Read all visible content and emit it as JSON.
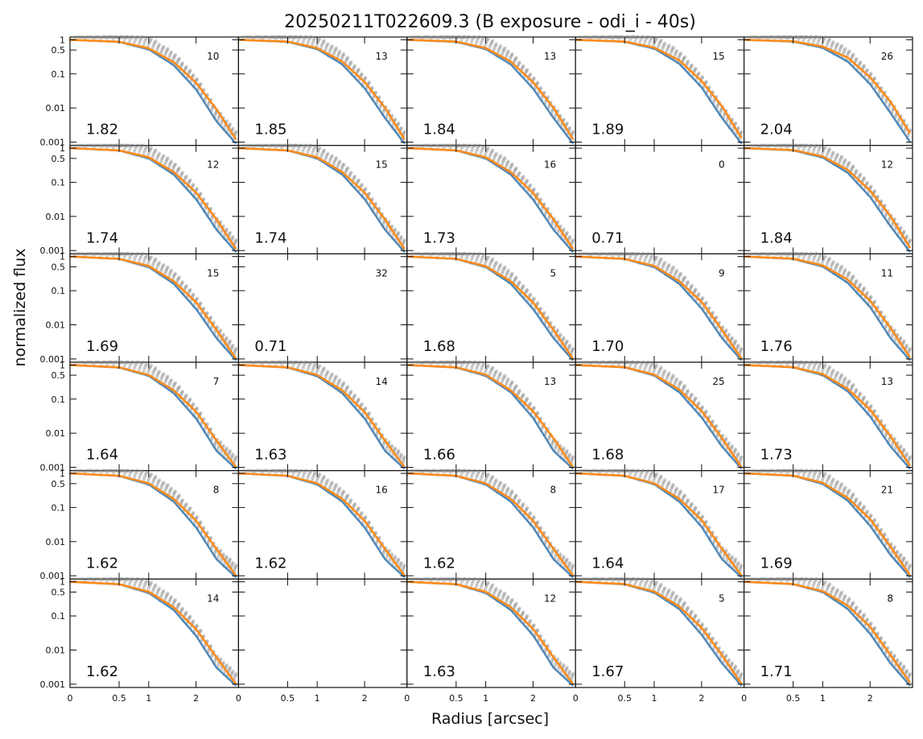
{
  "chart_data": {
    "type": "scatter",
    "title": "20250211T022609.3 (B exposure - odi_i - 40s)",
    "xlabel": "Radius [arcsec]",
    "ylabel": "normalized flux",
    "xscale": "radius-transform",
    "yscale": "log",
    "ylim": [
      0.0008,
      1.2
    ],
    "x_ticks": [
      0,
      0.5,
      1,
      2
    ],
    "x_tick_labels": [
      "0",
      "0.5",
      "1",
      "2"
    ],
    "y_ticks": [
      1,
      0.5,
      0.1,
      0.01,
      0.001
    ],
    "y_tick_labels": [
      "1",
      "0.5",
      "0.1",
      "0.01",
      "0.001"
    ],
    "grid": false,
    "layout": {
      "rows": 6,
      "cols": 5
    },
    "panels": [
      {
        "fwhm": "1.82",
        "count": "10",
        "profile_x": [
          0,
          0.5,
          1,
          1.5,
          2,
          2.5,
          3
        ],
        "measured_flux": [
          1,
          0.86,
          0.52,
          0.18,
          0.035,
          0.004,
          0.0009
        ],
        "fit_flux": [
          1,
          0.87,
          0.56,
          0.22,
          0.055,
          0.009,
          0.0012
        ]
      },
      {
        "fwhm": "1.85",
        "count": "13",
        "profile_x": [
          0,
          0.5,
          1,
          1.5,
          2,
          2.5,
          3
        ],
        "measured_flux": [
          1,
          0.86,
          0.53,
          0.19,
          0.038,
          0.005,
          0.0009
        ],
        "fit_flux": [
          1,
          0.88,
          0.57,
          0.23,
          0.058,
          0.01,
          0.0012
        ]
      },
      {
        "fwhm": "1.84",
        "count": "13",
        "profile_x": [
          0,
          0.5,
          1,
          1.5,
          2,
          2.5,
          3
        ],
        "measured_flux": [
          1,
          0.86,
          0.53,
          0.19,
          0.037,
          0.005,
          0.0009
        ],
        "fit_flux": [
          1,
          0.88,
          0.57,
          0.23,
          0.057,
          0.01,
          0.0012
        ]
      },
      {
        "fwhm": "1.89",
        "count": "15",
        "profile_x": [
          0,
          0.5,
          1,
          1.5,
          2,
          2.5,
          3
        ],
        "measured_flux": [
          1,
          0.87,
          0.55,
          0.2,
          0.04,
          0.005,
          0.0009
        ],
        "fit_flux": [
          1,
          0.88,
          0.59,
          0.25,
          0.062,
          0.011,
          0.0013
        ]
      },
      {
        "fwhm": "2.04",
        "count": "26",
        "profile_x": [
          0,
          0.5,
          1,
          1.5,
          2,
          2.5,
          3
        ],
        "measured_flux": [
          1,
          0.88,
          0.58,
          0.23,
          0.05,
          0.007,
          0.001
        ],
        "fit_flux": [
          1,
          0.9,
          0.63,
          0.3,
          0.08,
          0.015,
          0.0018
        ]
      },
      {
        "fwhm": "1.74",
        "count": "12",
        "profile_x": [
          0,
          0.5,
          1,
          1.5,
          2,
          2.5,
          3
        ],
        "measured_flux": [
          1,
          0.85,
          0.5,
          0.17,
          0.032,
          0.004,
          0.0009
        ],
        "fit_flux": [
          1,
          0.86,
          0.54,
          0.2,
          0.05,
          0.008,
          0.0011
        ]
      },
      {
        "fwhm": "1.74",
        "count": "15",
        "profile_x": [
          0,
          0.5,
          1,
          1.5,
          2,
          2.5,
          3
        ],
        "measured_flux": [
          1,
          0.85,
          0.5,
          0.17,
          0.032,
          0.004,
          0.0009
        ],
        "fit_flux": [
          1,
          0.86,
          0.54,
          0.2,
          0.05,
          0.008,
          0.0011
        ]
      },
      {
        "fwhm": "1.73",
        "count": "16",
        "profile_x": [
          0,
          0.5,
          1,
          1.5,
          2,
          2.5,
          3
        ],
        "measured_flux": [
          1,
          0.85,
          0.5,
          0.17,
          0.031,
          0.004,
          0.0009
        ],
        "fit_flux": [
          1,
          0.86,
          0.54,
          0.2,
          0.049,
          0.008,
          0.0011
        ]
      },
      {
        "fwhm": "0.71",
        "count": "0",
        "profile_x": [],
        "measured_flux": [],
        "fit_flux": []
      },
      {
        "fwhm": "1.84",
        "count": "12",
        "profile_x": [
          0,
          0.5,
          1,
          1.5,
          2,
          2.5,
          3
        ],
        "measured_flux": [
          1,
          0.86,
          0.53,
          0.19,
          0.037,
          0.005,
          0.0009
        ],
        "fit_flux": [
          1,
          0.88,
          0.57,
          0.23,
          0.057,
          0.01,
          0.0012
        ]
      },
      {
        "fwhm": "1.69",
        "count": "15",
        "profile_x": [
          0,
          0.5,
          1,
          1.5,
          2,
          2.5,
          3
        ],
        "measured_flux": [
          1,
          0.85,
          0.49,
          0.16,
          0.029,
          0.004,
          0.0009
        ],
        "fit_flux": [
          1,
          0.86,
          0.53,
          0.19,
          0.046,
          0.007,
          0.001
        ]
      },
      {
        "fwhm": "0.71",
        "count": "32",
        "profile_x": [],
        "measured_flux": [],
        "fit_flux": []
      },
      {
        "fwhm": "1.68",
        "count": "5",
        "profile_x": [
          0,
          0.5,
          1,
          1.5,
          2,
          2.5,
          3
        ],
        "measured_flux": [
          1,
          0.85,
          0.49,
          0.16,
          0.029,
          0.004,
          0.0009
        ],
        "fit_flux": [
          1,
          0.86,
          0.52,
          0.19,
          0.045,
          0.007,
          0.001
        ]
      },
      {
        "fwhm": "1.70",
        "count": "9",
        "profile_x": [
          0,
          0.5,
          1,
          1.5,
          2,
          2.5,
          3
        ],
        "measured_flux": [
          1,
          0.85,
          0.49,
          0.16,
          0.03,
          0.004,
          0.0009
        ],
        "fit_flux": [
          1,
          0.86,
          0.53,
          0.19,
          0.047,
          0.007,
          0.001
        ]
      },
      {
        "fwhm": "1.76",
        "count": "11",
        "profile_x": [
          0,
          0.5,
          1,
          1.5,
          2,
          2.5,
          3
        ],
        "measured_flux": [
          1,
          0.85,
          0.51,
          0.17,
          0.033,
          0.004,
          0.0009
        ],
        "fit_flux": [
          1,
          0.87,
          0.55,
          0.21,
          0.051,
          0.008,
          0.0011
        ]
      },
      {
        "fwhm": "1.64",
        "count": "7",
        "profile_x": [
          0,
          0.5,
          1,
          1.5,
          2,
          2.5,
          3
        ],
        "measured_flux": [
          1,
          0.84,
          0.48,
          0.15,
          0.027,
          0.003,
          0.0009
        ],
        "fit_flux": [
          1,
          0.85,
          0.51,
          0.18,
          0.043,
          0.006,
          0.001
        ]
      },
      {
        "fwhm": "1.63",
        "count": "14",
        "profile_x": [
          0,
          0.5,
          1,
          1.5,
          2,
          2.5,
          3
        ],
        "measured_flux": [
          1,
          0.84,
          0.47,
          0.15,
          0.027,
          0.003,
          0.0009
        ],
        "fit_flux": [
          1,
          0.85,
          0.51,
          0.18,
          0.042,
          0.006,
          0.001
        ]
      },
      {
        "fwhm": "1.66",
        "count": "13",
        "profile_x": [
          0,
          0.5,
          1,
          1.5,
          2,
          2.5,
          3
        ],
        "measured_flux": [
          1,
          0.84,
          0.48,
          0.16,
          0.028,
          0.003,
          0.0009
        ],
        "fit_flux": [
          1,
          0.85,
          0.52,
          0.18,
          0.044,
          0.007,
          0.001
        ]
      },
      {
        "fwhm": "1.68",
        "count": "25",
        "profile_x": [
          0,
          0.5,
          1,
          1.5,
          2,
          2.5,
          3
        ],
        "measured_flux": [
          1,
          0.85,
          0.49,
          0.16,
          0.029,
          0.004,
          0.0009
        ],
        "fit_flux": [
          1,
          0.86,
          0.52,
          0.19,
          0.045,
          0.007,
          0.001
        ]
      },
      {
        "fwhm": "1.73",
        "count": "13",
        "profile_x": [
          0,
          0.5,
          1,
          1.5,
          2,
          2.5,
          3
        ],
        "measured_flux": [
          1,
          0.85,
          0.5,
          0.17,
          0.031,
          0.004,
          0.0009
        ],
        "fit_flux": [
          1,
          0.86,
          0.54,
          0.2,
          0.049,
          0.008,
          0.0011
        ]
      },
      {
        "fwhm": "1.62",
        "count": "8",
        "profile_x": [
          0,
          0.5,
          1,
          1.5,
          2,
          2.5,
          3
        ],
        "measured_flux": [
          1,
          0.84,
          0.47,
          0.15,
          0.026,
          0.003,
          0.0009
        ],
        "fit_flux": [
          1,
          0.85,
          0.51,
          0.18,
          0.041,
          0.006,
          0.001
        ]
      },
      {
        "fwhm": "1.62",
        "count": "16",
        "profile_x": [
          0,
          0.5,
          1,
          1.5,
          2,
          2.5,
          3
        ],
        "measured_flux": [
          1,
          0.84,
          0.47,
          0.15,
          0.026,
          0.003,
          0.0009
        ],
        "fit_flux": [
          1,
          0.85,
          0.51,
          0.18,
          0.041,
          0.006,
          0.001
        ]
      },
      {
        "fwhm": "1.62",
        "count": "8",
        "profile_x": [
          0,
          0.5,
          1,
          1.5,
          2,
          2.5,
          3
        ],
        "measured_flux": [
          1,
          0.84,
          0.47,
          0.15,
          0.026,
          0.003,
          0.0009
        ],
        "fit_flux": [
          1,
          0.85,
          0.51,
          0.18,
          0.041,
          0.006,
          0.001
        ]
      },
      {
        "fwhm": "1.64",
        "count": "17",
        "profile_x": [
          0,
          0.5,
          1,
          1.5,
          2,
          2.5,
          3
        ],
        "measured_flux": [
          1,
          0.84,
          0.48,
          0.15,
          0.027,
          0.003,
          0.0009
        ],
        "fit_flux": [
          1,
          0.85,
          0.51,
          0.18,
          0.043,
          0.006,
          0.001
        ]
      },
      {
        "fwhm": "1.69",
        "count": "21",
        "profile_x": [
          0,
          0.5,
          1,
          1.5,
          2,
          2.5,
          3
        ],
        "measured_flux": [
          1,
          0.85,
          0.49,
          0.16,
          0.029,
          0.004,
          0.0009
        ],
        "fit_flux": [
          1,
          0.86,
          0.53,
          0.19,
          0.046,
          0.007,
          0.001
        ]
      },
      {
        "fwhm": "1.62",
        "count": "14",
        "profile_x": [
          0,
          0.5,
          1,
          1.5,
          2,
          2.5,
          3
        ],
        "measured_flux": [
          1,
          0.84,
          0.47,
          0.15,
          0.026,
          0.003,
          0.0009
        ],
        "fit_flux": [
          1,
          0.85,
          0.51,
          0.18,
          0.041,
          0.006,
          0.001
        ]
      },
      {
        "fwhm": "",
        "count": "",
        "profile_x": [],
        "measured_flux": [],
        "fit_flux": []
      },
      {
        "fwhm": "1.63",
        "count": "12",
        "profile_x": [
          0,
          0.5,
          1,
          1.5,
          2,
          2.5,
          3
        ],
        "measured_flux": [
          1,
          0.84,
          0.47,
          0.15,
          0.027,
          0.003,
          0.0009
        ],
        "fit_flux": [
          1,
          0.85,
          0.51,
          0.18,
          0.042,
          0.006,
          0.001
        ]
      },
      {
        "fwhm": "1.67",
        "count": "5",
        "profile_x": [
          0,
          0.5,
          1,
          1.5,
          2,
          2.5,
          3
        ],
        "measured_flux": [
          1,
          0.84,
          0.48,
          0.16,
          0.028,
          0.004,
          0.0009
        ],
        "fit_flux": [
          1,
          0.86,
          0.52,
          0.19,
          0.045,
          0.007,
          0.001
        ]
      },
      {
        "fwhm": "1.71",
        "count": "8",
        "profile_x": [
          0,
          0.5,
          1,
          1.5,
          2,
          2.5,
          3
        ],
        "measured_flux": [
          1,
          0.85,
          0.5,
          0.16,
          0.03,
          0.004,
          0.0009
        ],
        "fit_flux": [
          1,
          0.86,
          0.53,
          0.2,
          0.048,
          0.007,
          0.0011
        ]
      }
    ],
    "colors": {
      "scatter": "#808080",
      "measured": "#4682b4",
      "fit": "#ff8c1a"
    }
  }
}
